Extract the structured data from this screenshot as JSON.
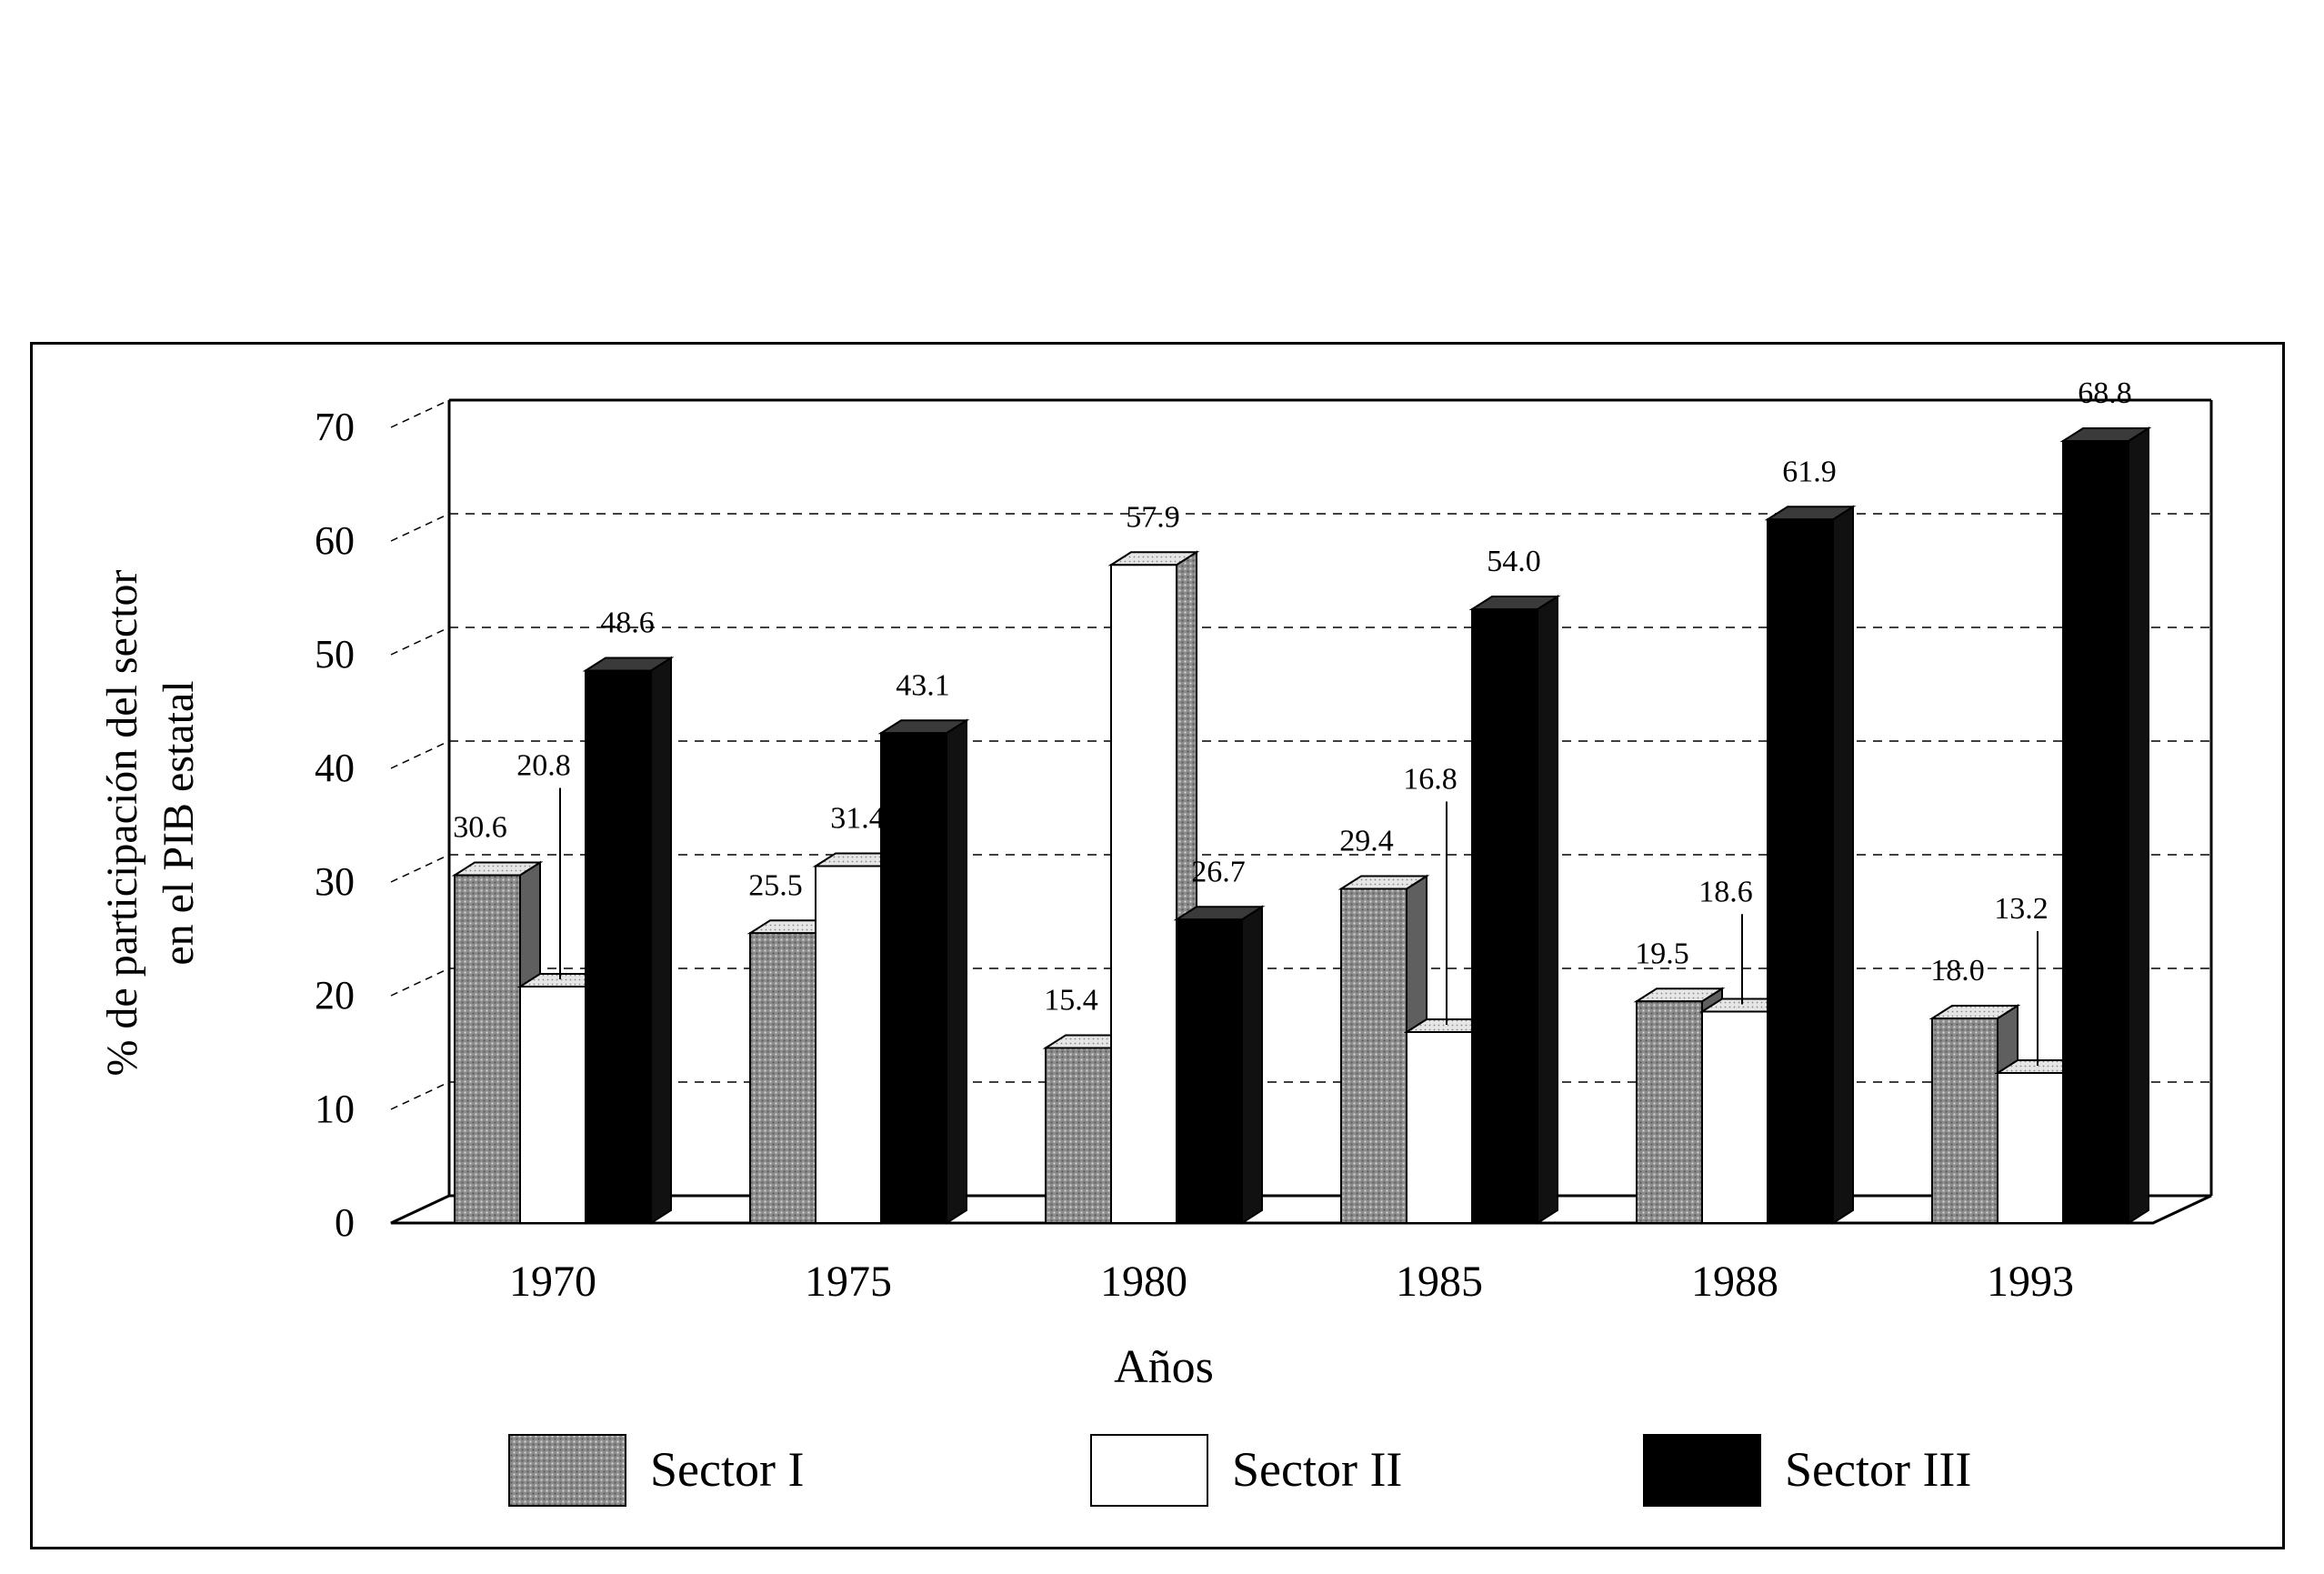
{
  "chart_data": {
    "type": "bar",
    "categories": [
      "1970",
      "1975",
      "1980",
      "1985",
      "1988",
      "1993"
    ],
    "series": [
      {
        "name": "Sector I",
        "values": [
          30.6,
          25.5,
          15.4,
          29.4,
          19.5,
          18.0
        ]
      },
      {
        "name": "Sector II",
        "values": [
          20.8,
          31.4,
          57.9,
          16.8,
          18.6,
          13.2
        ]
      },
      {
        "name": "Sector III",
        "values": [
          48.6,
          43.1,
          26.7,
          54.0,
          61.9,
          68.8
        ]
      }
    ],
    "data_labels": [
      [
        "30.6",
        "20.8",
        "48.6"
      ],
      [
        "25.5",
        "31.4",
        "43.1"
      ],
      [
        "15.4",
        "57.9",
        "26.7"
      ],
      [
        "29.4",
        "16.8",
        "54.0"
      ],
      [
        "19.5",
        "18.6",
        "61.9"
      ],
      [
        "18.0",
        "13.2",
        "68.8"
      ]
    ],
    "xlabel": "Años",
    "ylabel_lines": [
      "% de participación del sector",
      "en el PIB estatal"
    ],
    "ylim": [
      0,
      70
    ],
    "yticks": [
      "0",
      "10",
      "20",
      "30",
      "40",
      "50",
      "60",
      "70"
    ],
    "grid": true,
    "legend_position": "bottom",
    "colors": {
      "sector_i": "#9a9a9a",
      "sector_i_top": "#c4c4c4",
      "sector_ii": "#ffffff",
      "sector_ii_top": "#d8d8d8",
      "sector_iii": "#000000",
      "sector_iii_top": "#3a3a3a",
      "grid": "#000000"
    }
  }
}
